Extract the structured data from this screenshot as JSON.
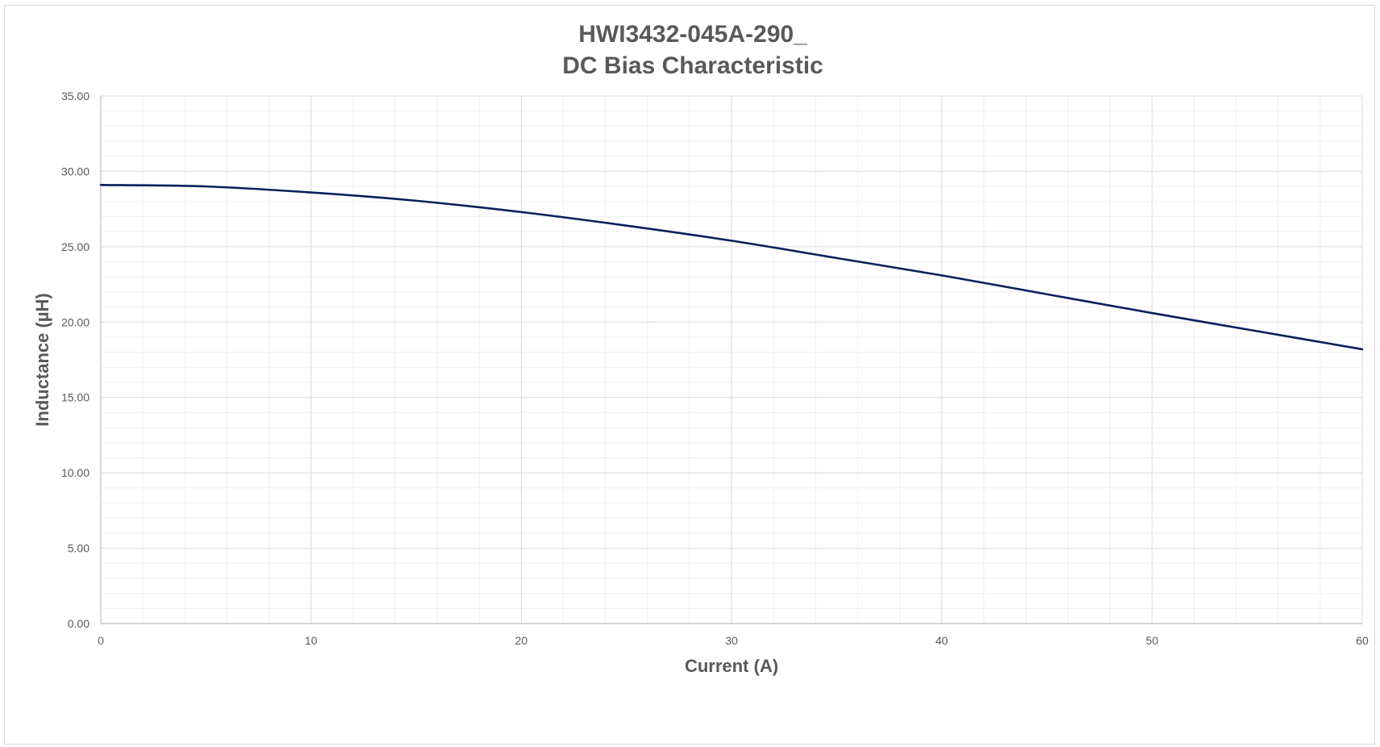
{
  "chart_data": {
    "type": "line",
    "title_lines": [
      "HWI3432-045A-290_",
      "DC Bias Characteristic"
    ],
    "xlabel": "Current (A)",
    "ylabel": "Inductance (µH)",
    "xlim": [
      0,
      60
    ],
    "ylim": [
      0,
      35
    ],
    "x_ticks": [
      0,
      10,
      20,
      30,
      40,
      50,
      60
    ],
    "x_tick_labels": [
      "0",
      "10",
      "20",
      "30",
      "40",
      "50",
      "60"
    ],
    "y_ticks": [
      0,
      5,
      10,
      15,
      20,
      25,
      30,
      35
    ],
    "y_tick_labels": [
      "0.00",
      "5.00",
      "10.00",
      "15.00",
      "20.00",
      "25.00",
      "30.00",
      "35.00"
    ],
    "x_minor_step": 2,
    "y_minor_step": 1,
    "grid": true,
    "legend": "none",
    "series": [
      {
        "color": "#0b1f5c",
        "x": [
          0,
          5,
          10,
          15,
          20,
          25,
          30,
          35,
          40,
          45,
          50,
          55,
          60
        ],
        "y": [
          29.1,
          29.0,
          28.6,
          28.05,
          27.3,
          26.4,
          25.4,
          24.25,
          23.1,
          21.85,
          20.6,
          19.4,
          18.2
        ]
      }
    ]
  }
}
